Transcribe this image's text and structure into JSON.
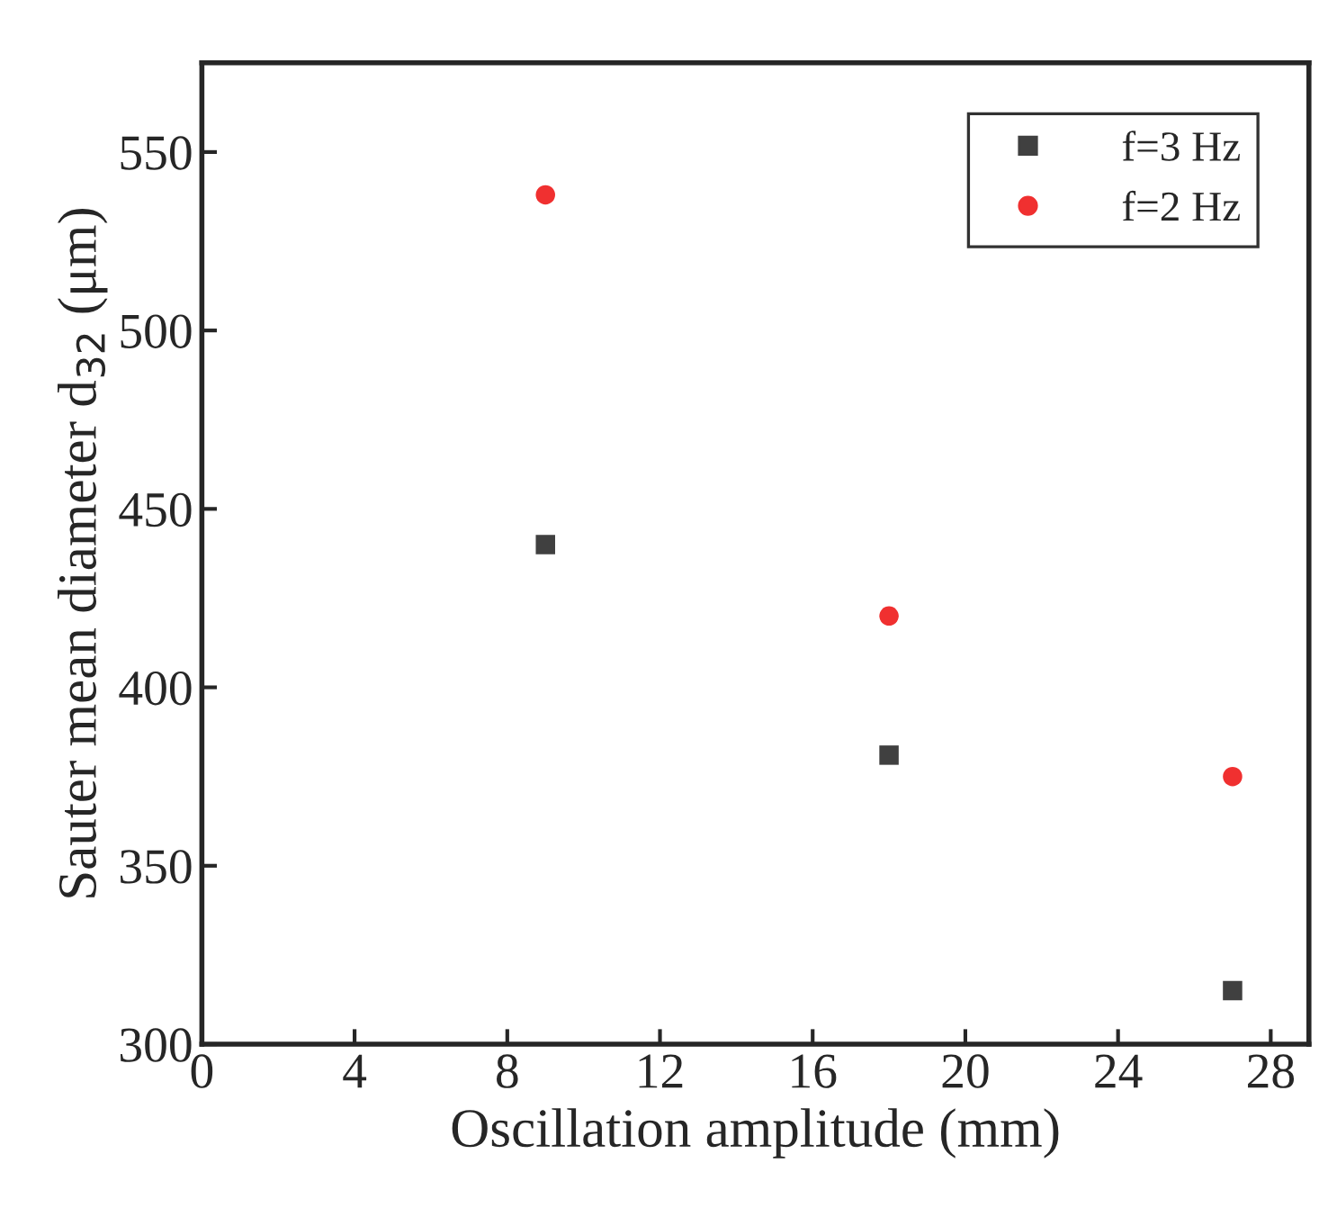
{
  "chart_data": {
    "type": "scatter",
    "xlabel": "Oscillation amplitude (mm)",
    "ylabel": "Sauter mean diameter d$_{32}$ (μm)",
    "x": [
      9,
      18,
      27
    ],
    "series": [
      {
        "name": "f=3 Hz",
        "color": "#404040",
        "marker": "square",
        "values": [
          440,
          381,
          315
        ]
      },
      {
        "name": "f=2 Hz",
        "color": "#f03030",
        "marker": "circle",
        "values": [
          538,
          420,
          375
        ]
      }
    ],
    "xlim": [
      0,
      29
    ],
    "xticks": [
      0,
      4,
      8,
      12,
      16,
      20,
      24,
      28
    ],
    "ylim": [
      300,
      575
    ],
    "yticks": [
      300,
      350,
      400,
      450,
      500,
      550
    ],
    "grid": false,
    "legend": "top right"
  }
}
